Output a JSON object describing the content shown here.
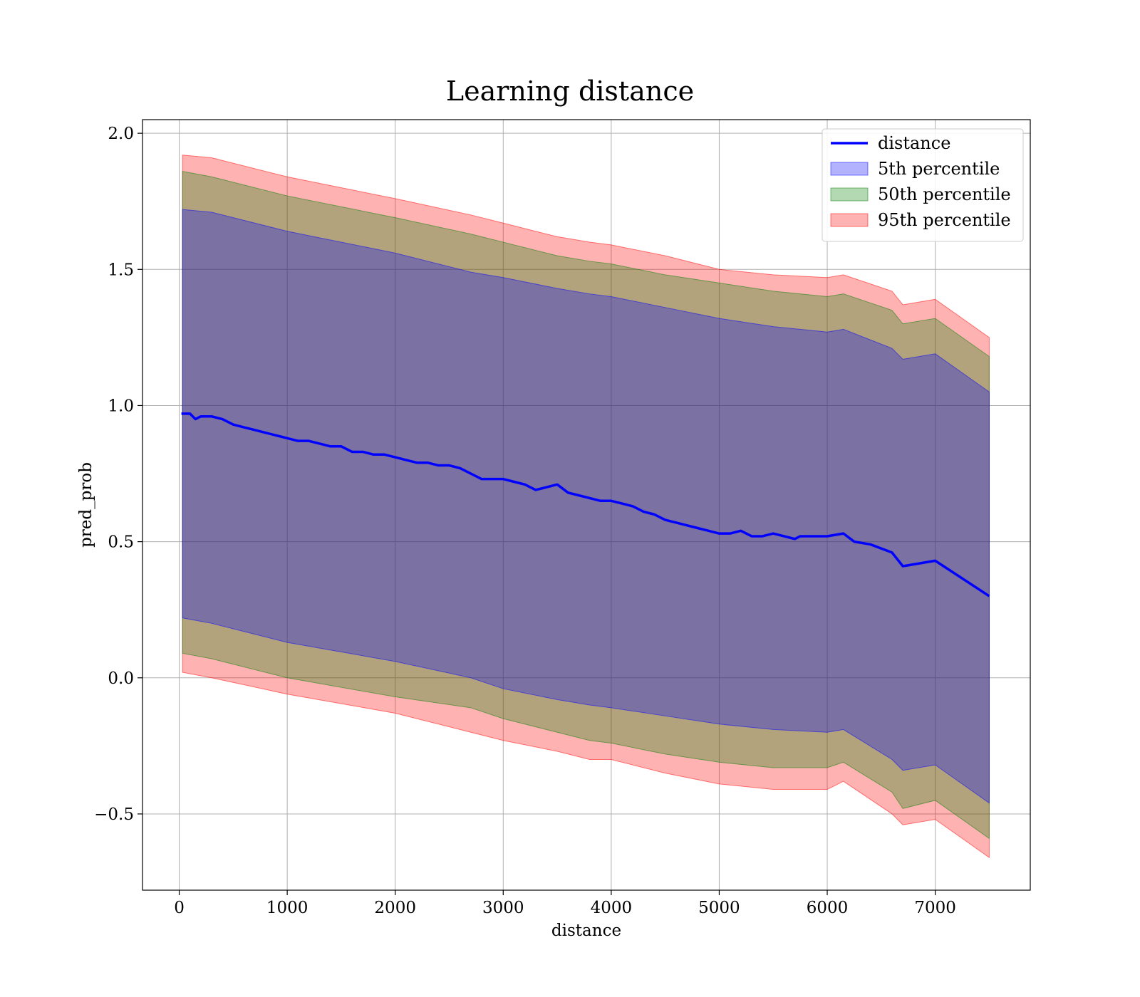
{
  "chart_data": {
    "type": "line",
    "title": "Learning distance",
    "xlabel": "distance",
    "ylabel": "pred_prob",
    "xlim": [
      -340,
      7880
    ],
    "ylim": [
      -0.78,
      2.05
    ],
    "xticks": [
      0,
      1000,
      2000,
      3000,
      4000,
      5000,
      6000,
      7000
    ],
    "xtick_labels": [
      "0",
      "1000",
      "2000",
      "3000",
      "4000",
      "5000",
      "6000",
      "7000"
    ],
    "yticks": [
      -0.5,
      0.0,
      0.5,
      1.0,
      1.5,
      2.0
    ],
    "ytick_labels": [
      "−0.5",
      "0.0",
      "0.5",
      "1.0",
      "1.5",
      "2.0"
    ],
    "grid": true,
    "legend_position": "top-right",
    "legend": [
      {
        "label": "distance",
        "kind": "line",
        "color": "#0000ff"
      },
      {
        "label": "5th percentile",
        "kind": "patch",
        "color": "#0000ff"
      },
      {
        "label": "50th percentile",
        "kind": "patch",
        "color": "#008000"
      },
      {
        "label": "95th percentile",
        "kind": "patch",
        "color": "#ff0000"
      }
    ],
    "series": [
      {
        "name": "distance",
        "kind": "line",
        "color": "#0000ff",
        "x": [
          20,
          100,
          150,
          200,
          300,
          400,
          500,
          600,
          700,
          800,
          900,
          1000,
          1100,
          1200,
          1300,
          1400,
          1500,
          1600,
          1700,
          1800,
          1900,
          2000,
          2100,
          2200,
          2300,
          2400,
          2500,
          2600,
          2700,
          2800,
          2900,
          3000,
          3100,
          3200,
          3300,
          3400,
          3500,
          3600,
          3700,
          3800,
          3900,
          4000,
          4100,
          4200,
          4300,
          4400,
          4500,
          4600,
          4700,
          4800,
          4900,
          5000,
          5100,
          5200,
          5300,
          5400,
          5500,
          5600,
          5700,
          5750,
          5800,
          5900,
          6000,
          6150,
          6250,
          6400,
          6600,
          6700,
          7000,
          7500
        ],
        "y": [
          0.97,
          0.97,
          0.95,
          0.96,
          0.96,
          0.95,
          0.93,
          0.92,
          0.91,
          0.9,
          0.89,
          0.88,
          0.87,
          0.87,
          0.86,
          0.85,
          0.85,
          0.83,
          0.83,
          0.82,
          0.82,
          0.81,
          0.8,
          0.79,
          0.79,
          0.78,
          0.78,
          0.77,
          0.75,
          0.73,
          0.73,
          0.73,
          0.72,
          0.71,
          0.69,
          0.7,
          0.71,
          0.68,
          0.67,
          0.66,
          0.65,
          0.65,
          0.64,
          0.63,
          0.61,
          0.6,
          0.58,
          0.57,
          0.56,
          0.55,
          0.54,
          0.53,
          0.53,
          0.54,
          0.52,
          0.52,
          0.53,
          0.52,
          0.51,
          0.52,
          0.52,
          0.52,
          0.52,
          0.53,
          0.5,
          0.49,
          0.46,
          0.41,
          0.43,
          0.3
        ]
      },
      {
        "name": "5th percentile",
        "kind": "band",
        "color": "#0000ff",
        "x": [
          30,
          300,
          1000,
          2000,
          2700,
          3000,
          3500,
          3800,
          4000,
          4500,
          5000,
          5500,
          6000,
          6150,
          6600,
          6700,
          7000,
          7500
        ],
        "lower": [
          0.22,
          0.2,
          0.13,
          0.06,
          0.0,
          -0.04,
          -0.08,
          -0.1,
          -0.11,
          -0.14,
          -0.17,
          -0.19,
          -0.2,
          -0.19,
          -0.3,
          -0.34,
          -0.32,
          -0.46
        ],
        "upper": [
          1.72,
          1.71,
          1.64,
          1.56,
          1.49,
          1.47,
          1.43,
          1.41,
          1.4,
          1.36,
          1.32,
          1.29,
          1.27,
          1.28,
          1.21,
          1.17,
          1.19,
          1.05
        ]
      },
      {
        "name": "50th percentile",
        "kind": "band",
        "color": "#008000",
        "x": [
          30,
          300,
          1000,
          2000,
          2700,
          3000,
          3500,
          3800,
          4000,
          4500,
          5000,
          5500,
          6000,
          6150,
          6600,
          6700,
          7000,
          7500
        ],
        "lower": [
          0.09,
          0.07,
          0.0,
          -0.07,
          -0.11,
          -0.15,
          -0.2,
          -0.23,
          -0.24,
          -0.28,
          -0.31,
          -0.33,
          -0.33,
          -0.31,
          -0.42,
          -0.48,
          -0.45,
          -0.59
        ],
        "upper": [
          1.86,
          1.84,
          1.77,
          1.69,
          1.63,
          1.6,
          1.55,
          1.53,
          1.52,
          1.48,
          1.45,
          1.42,
          1.4,
          1.41,
          1.35,
          1.3,
          1.32,
          1.18
        ]
      },
      {
        "name": "95th percentile",
        "kind": "band",
        "color": "#ff0000",
        "x": [
          30,
          300,
          1000,
          2000,
          2700,
          3000,
          3500,
          3800,
          4000,
          4500,
          5000,
          5500,
          6000,
          6150,
          6600,
          6700,
          7000,
          7500
        ],
        "lower": [
          0.02,
          0.0,
          -0.06,
          -0.13,
          -0.2,
          -0.23,
          -0.27,
          -0.3,
          -0.3,
          -0.35,
          -0.39,
          -0.41,
          -0.41,
          -0.38,
          -0.5,
          -0.54,
          -0.52,
          -0.66
        ],
        "upper": [
          1.92,
          1.91,
          1.84,
          1.76,
          1.7,
          1.67,
          1.62,
          1.6,
          1.59,
          1.55,
          1.5,
          1.48,
          1.47,
          1.48,
          1.42,
          1.37,
          1.39,
          1.25
        ]
      }
    ]
  }
}
